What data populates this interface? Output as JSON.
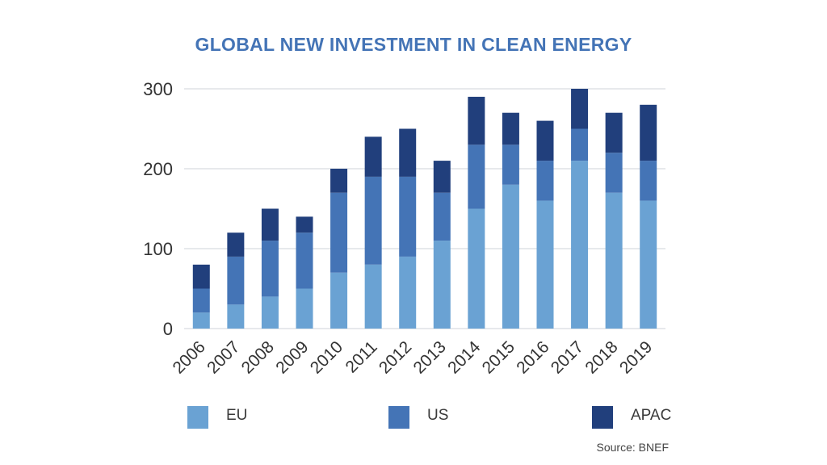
{
  "chart_data": {
    "type": "bar",
    "stacked": true,
    "title": "GLOBAL NEW INVESTMENT IN CLEAN ENERGY",
    "categories": [
      "2006",
      "2007",
      "2008",
      "2009",
      "2010",
      "2011",
      "2012",
      "2013",
      "2014",
      "2015",
      "2016",
      "2017",
      "2018",
      "2019"
    ],
    "series": [
      {
        "name": "EU",
        "color": "#6aa2d3",
        "values": [
          20,
          30,
          40,
          50,
          70,
          80,
          90,
          110,
          150,
          180,
          160,
          210,
          170,
          160
        ]
      },
      {
        "name": "US",
        "color": "#4474b6",
        "values": [
          30,
          60,
          70,
          70,
          100,
          110,
          100,
          60,
          80,
          50,
          50,
          40,
          50,
          50
        ]
      },
      {
        "name": "APAC",
        "color": "#213f7c",
        "values": [
          30,
          30,
          40,
          20,
          30,
          50,
          60,
          40,
          60,
          40,
          50,
          50,
          50,
          70
        ]
      }
    ],
    "ylim": [
      0,
      300
    ],
    "yticks": [
      0,
      100,
      200,
      300
    ],
    "grid": true,
    "legend": "bottom",
    "xlabel": "",
    "ylabel": ""
  },
  "title_color": "#4474b6",
  "source": "Source: BNEF"
}
